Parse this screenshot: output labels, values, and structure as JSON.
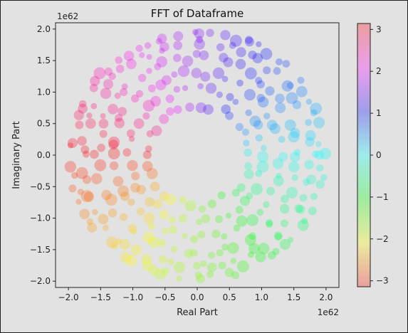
{
  "chart_data": {
    "type": "scatter",
    "title": "FFT of Dataframe",
    "xlabel": "Real Part",
    "ylabel": "Imaginary Part",
    "x_offset_text": "1e62",
    "y_offset_text": "1e62",
    "xlim": [
      -2.2,
      2.2
    ],
    "ylim": [
      -2.1,
      2.1
    ],
    "x_ticks": [
      -2.0,
      -1.5,
      -1.0,
      -0.5,
      0.0,
      0.5,
      1.0,
      1.5,
      2.0
    ],
    "x_tick_labels": [
      "−2.0",
      "−1.5",
      "−1.0",
      "−0.5",
      "0.0",
      "0.5",
      "1.0",
      "1.5",
      "2.0"
    ],
    "y_ticks": [
      -2.0,
      -1.5,
      -1.0,
      -0.5,
      0.0,
      0.5,
      1.0,
      1.5,
      2.0
    ],
    "y_tick_labels": [
      "−2.0",
      "−1.5",
      "−1.0",
      "−0.5",
      "0.0",
      "0.5",
      "1.0",
      "1.5",
      "2.0"
    ],
    "grid": false,
    "colorbar": {
      "cmap": "hsv",
      "range": [
        -3.14159,
        3.14159
      ],
      "ticks": [
        -3,
        -2,
        -1,
        0,
        1,
        2,
        3
      ],
      "tick_labels": [
        "−3",
        "−2",
        "−1",
        "0",
        "1",
        "2",
        "3"
      ]
    },
    "rings": [
      {
        "radius": 1.95,
        "count": 72
      },
      {
        "radius": 1.78,
        "count": 64
      },
      {
        "radius": 1.55,
        "count": 58
      },
      {
        "radius": 1.3,
        "count": 50
      },
      {
        "radius": 1.05,
        "count": 40
      },
      {
        "radius": 0.8,
        "count": 30
      }
    ]
  }
}
